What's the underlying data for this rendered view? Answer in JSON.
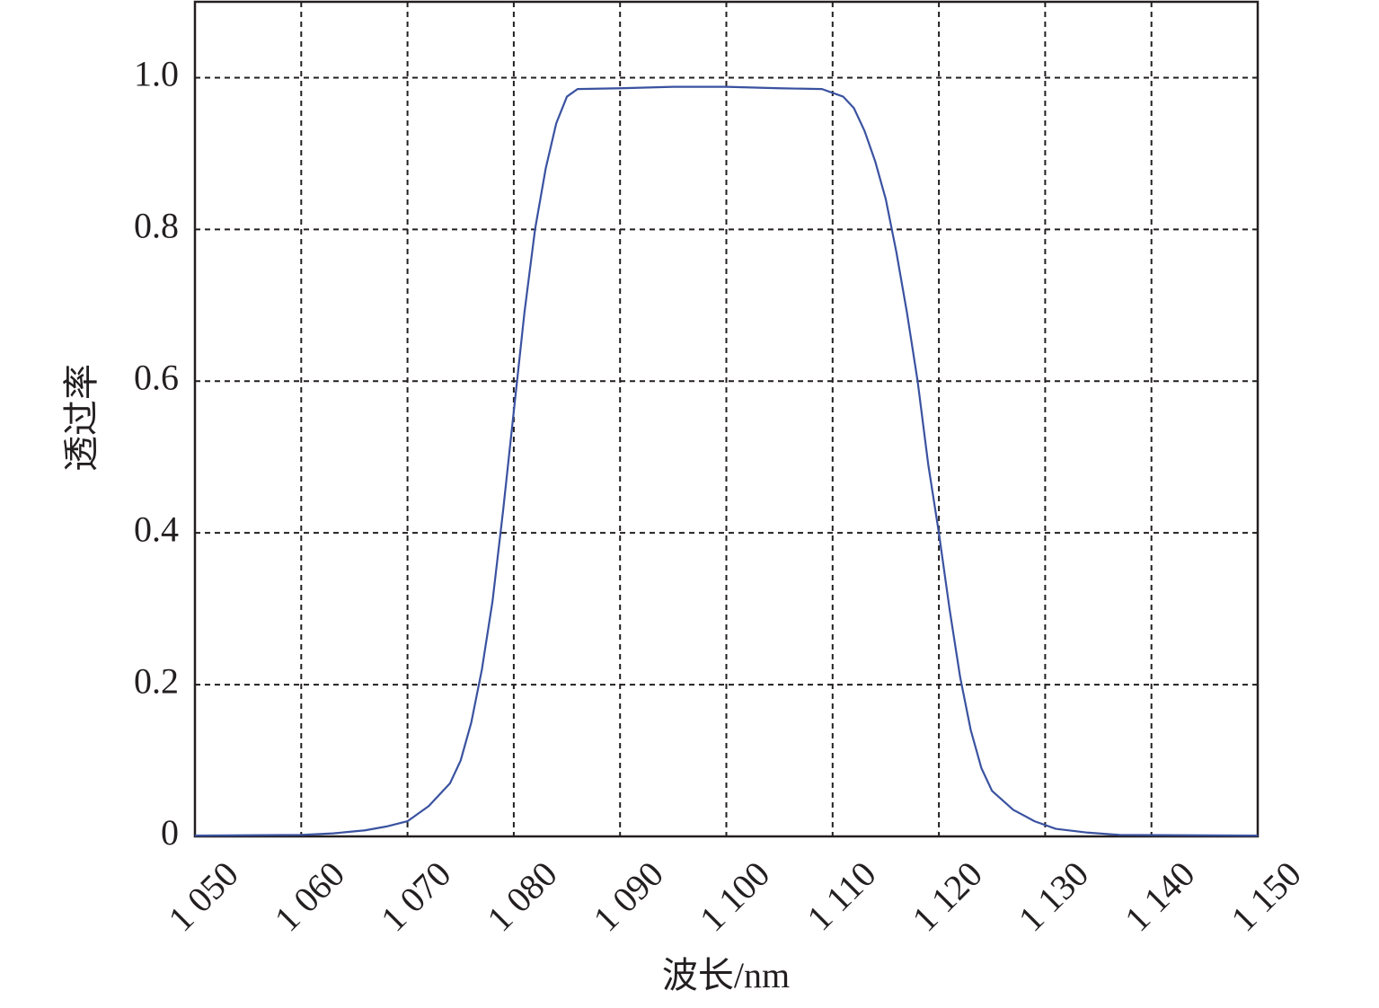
{
  "chart_data": {
    "type": "line",
    "x_label": "波长/nm",
    "y_label": "透过率",
    "x": [
      1050,
      1060,
      1063,
      1066,
      1068,
      1070,
      1072,
      1074,
      1075,
      1076,
      1077,
      1078,
      1079,
      1080,
      1081,
      1082,
      1083,
      1084,
      1085,
      1086,
      1090,
      1095,
      1100,
      1105,
      1109,
      1111,
      1112,
      1113,
      1114,
      1115,
      1116,
      1117,
      1118,
      1119,
      1120,
      1121,
      1122,
      1123,
      1124,
      1125,
      1127,
      1129,
      1131,
      1134,
      1137,
      1150
    ],
    "values": [
      0.001,
      0.002,
      0.004,
      0.008,
      0.013,
      0.02,
      0.04,
      0.07,
      0.1,
      0.15,
      0.22,
      0.31,
      0.43,
      0.56,
      0.69,
      0.8,
      0.88,
      0.94,
      0.975,
      0.985,
      0.986,
      0.988,
      0.988,
      0.986,
      0.985,
      0.975,
      0.96,
      0.93,
      0.89,
      0.84,
      0.77,
      0.69,
      0.6,
      0.49,
      0.4,
      0.3,
      0.21,
      0.14,
      0.09,
      0.06,
      0.035,
      0.02,
      0.01,
      0.005,
      0.002,
      0.001
    ],
    "color": "#3a52a0",
    "xlim": [
      1050,
      1150
    ],
    "xticks": [
      {
        "value": 1050,
        "label": "1 050"
      },
      {
        "value": 1060,
        "label": "1 060"
      },
      {
        "value": 1070,
        "label": "1 070"
      },
      {
        "value": 1080,
        "label": "1 080"
      },
      {
        "value": 1090,
        "label": "1 090"
      },
      {
        "value": 1100,
        "label": "1 100"
      },
      {
        "value": 1110,
        "label": "1 110"
      },
      {
        "value": 1120,
        "label": "1 120"
      },
      {
        "value": 1130,
        "label": "1 130"
      },
      {
        "value": 1140,
        "label": "1 140"
      },
      {
        "value": 1150,
        "label": "1 150"
      }
    ],
    "ylim": [
      0,
      1.1
    ],
    "yticks": [
      0,
      0.2,
      0.4,
      0.6,
      0.8,
      {
        "value": 1.0,
        "label": "1.0"
      }
    ],
    "grid": true
  }
}
